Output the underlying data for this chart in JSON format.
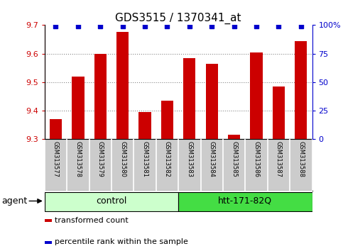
{
  "title": "GDS3515 / 1370341_at",
  "samples": [
    "GSM313577",
    "GSM313578",
    "GSM313579",
    "GSM313580",
    "GSM313581",
    "GSM313582",
    "GSM313583",
    "GSM313584",
    "GSM313585",
    "GSM313586",
    "GSM313587",
    "GSM313588"
  ],
  "values": [
    9.37,
    9.52,
    9.6,
    9.675,
    9.395,
    9.435,
    9.585,
    9.565,
    9.315,
    9.605,
    9.485,
    9.645
  ],
  "percentile_ranks": [
    99,
    99,
    99,
    99,
    99,
    99,
    99,
    99,
    99,
    99,
    99,
    99
  ],
  "bar_color": "#cc0000",
  "dot_color": "#0000cc",
  "ylim_left": [
    9.3,
    9.7
  ],
  "ylim_right": [
    0,
    100
  ],
  "yticks_left": [
    9.3,
    9.4,
    9.5,
    9.6,
    9.7
  ],
  "ytick_labels_left": [
    "9.3",
    "9.4",
    "9.5",
    "9.6",
    "9.7"
  ],
  "yticks_right": [
    0,
    25,
    50,
    75,
    100
  ],
  "ytick_labels_right": [
    "0",
    "25",
    "50",
    "75",
    "100%"
  ],
  "groups": [
    {
      "label": "control",
      "start": 0,
      "end": 6,
      "color": "#ccffcc"
    },
    {
      "label": "htt-171-82Q",
      "start": 6,
      "end": 12,
      "color": "#44dd44"
    }
  ],
  "agent_label": "agent",
  "legend_items": [
    {
      "color": "#cc0000",
      "label": "transformed count"
    },
    {
      "color": "#0000cc",
      "label": "percentile rank within the sample"
    }
  ],
  "bar_width": 0.55,
  "background_color": "#ffffff",
  "sample_bg_color": "#cccccc",
  "sample_border_color": "#ffffff",
  "grid_color": "#888888",
  "grid_ticks": [
    9.4,
    9.5,
    9.6
  ],
  "tick_fontsize": 8,
  "title_fontsize": 11,
  "sample_fontsize": 6,
  "group_fontsize": 9,
  "legend_fontsize": 8
}
